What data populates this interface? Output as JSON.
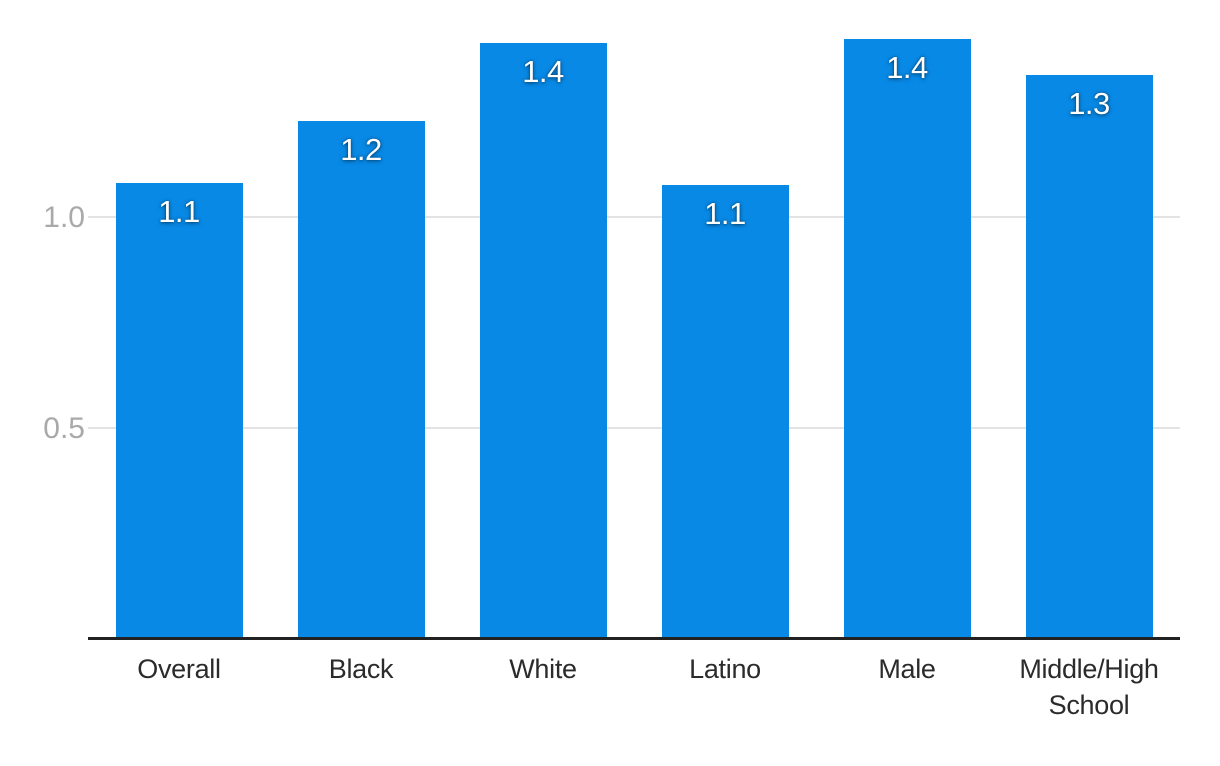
{
  "chart_data": {
    "type": "bar",
    "title": "",
    "xlabel": "",
    "ylabel": "",
    "categories": [
      "Overall",
      "Black",
      "White",
      "Latino",
      "Male",
      "Middle/High School"
    ],
    "values": [
      1.1,
      1.2,
      1.4,
      1.1,
      1.4,
      1.3
    ],
    "bar_value_labels": [
      "1.1",
      "1.2",
      "1.4",
      "1.1",
      "1.4",
      "1.3"
    ],
    "values_precise_estimate": [
      1.081,
      1.227,
      1.412,
      1.076,
      1.422,
      1.337
    ],
    "yticks": [
      {
        "value": 0.5,
        "label": "0.5"
      },
      {
        "value": 1.0,
        "label": "1.0"
      }
    ],
    "ylim": [
      0,
      1.51
    ],
    "grid": "horizontal gridlines at yticks only",
    "legend": "none",
    "value_labels_position": "inside bar top, centered, white text"
  },
  "colors": {
    "bar_fill": "#0889e6",
    "gridline": "#e3e3e3",
    "ytick_text": "#a9a9a9",
    "xtick_text": "#2b2b2b",
    "axis_line": "#222222",
    "background": "#ffffff",
    "bar_value_text": "#ffffff"
  }
}
